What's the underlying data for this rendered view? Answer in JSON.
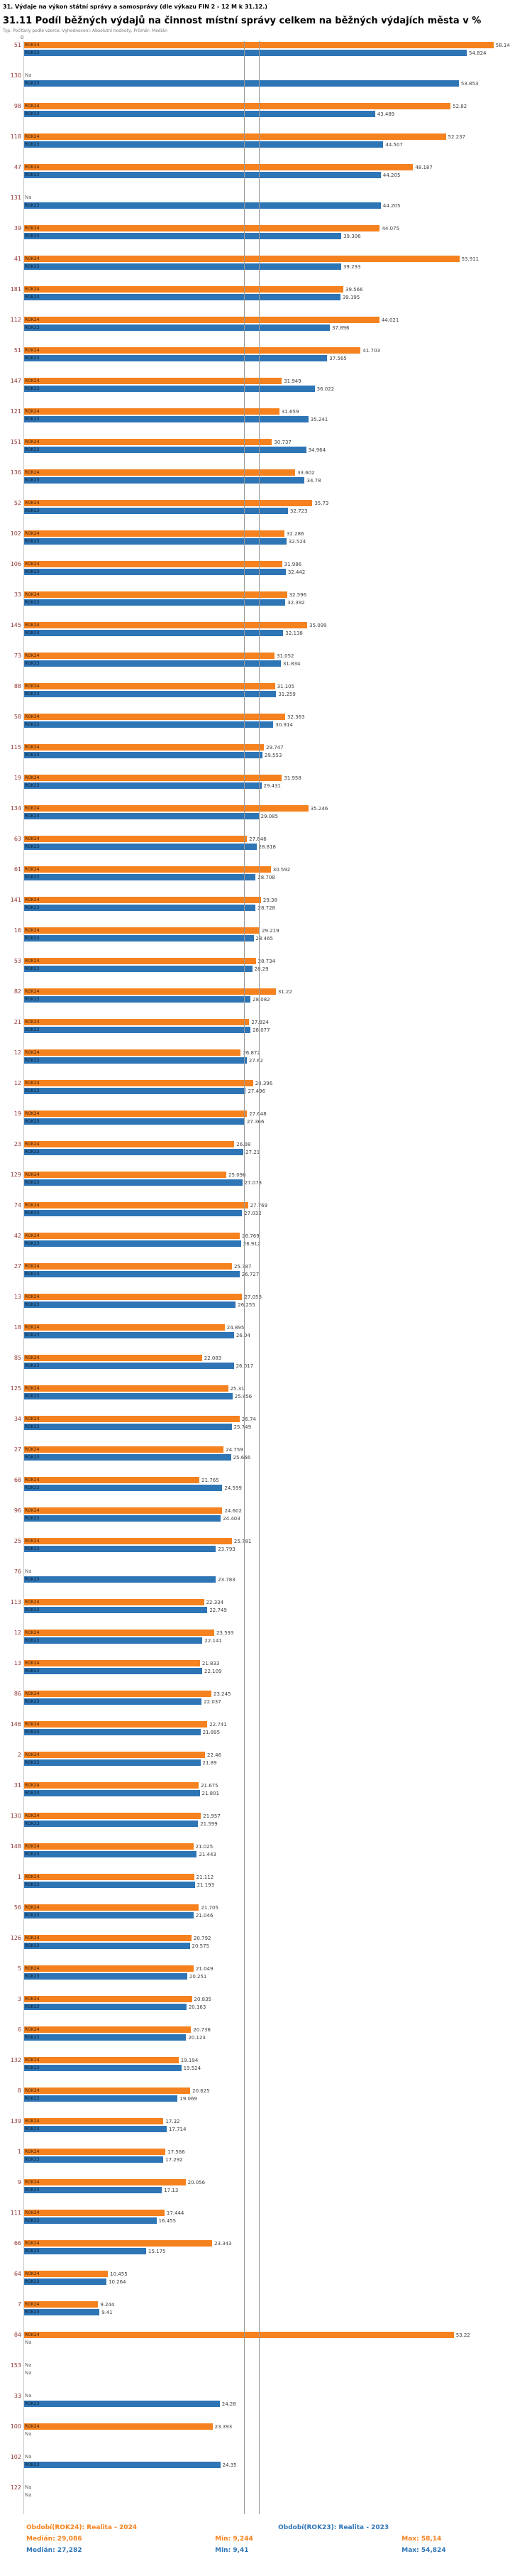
{
  "header": {
    "title": "31. Výdaje na výkon státní správy a samosprávy (dle výkazu FIN 2 - 12 M k 31.12.)",
    "subtitle": "31.11 Podíl běžných výdajů na činnost místní správy celkem na běžných výdajích města v %",
    "meta": "Typ: Počítaný podle vzorce, Vyhodnocení: Absolutní hodnoty, Průměr: Medián"
  },
  "axis": {
    "origin_label": "0"
  },
  "footer": {
    "legend": [
      {
        "label": "Období(ROK24): Realita - 2024",
        "color": "#F5821F"
      },
      {
        "label": "Období(ROK23): Realita - 2023",
        "color": "#2E75B6"
      }
    ],
    "stats": [
      {
        "median": "Medián: 29,086",
        "min": "Min: 9,244",
        "max": "Max: 58,14",
        "color": "#F5821F"
      },
      {
        "median": "Medián: 27,282",
        "min": "Min: 9,41",
        "max": "Max: 54,824",
        "color": "#2E75B6"
      }
    ]
  },
  "chart_data": {
    "type": "bar",
    "orientation": "horizontal",
    "title": "31.11 Podíl běžných výdajů na činnost místní správy celkem na běžných výdajích města v %",
    "xlabel": "",
    "ylabel": "",
    "x_axis": {
      "min": 0,
      "max": 62,
      "origin_label": "0"
    },
    "legend_position": "bottom",
    "grid": false,
    "series_labels": [
      "ROK24",
      "ROK23"
    ],
    "colors": {
      "ROK24": "#F5821F",
      "ROK23": "#2E75B6"
    },
    "na_label": "Na",
    "medians": {
      "ROK24": 29.086,
      "ROK23": 27.282
    },
    "mins": {
      "ROK24": 9.244,
      "ROK23": 9.41
    },
    "maxs": {
      "ROK24": 58.14,
      "ROK23": 54.824
    },
    "rows": [
      {
        "id": "51",
        "ROK24": 58.14,
        "ROK23": 54.824
      },
      {
        "id": "130",
        "ROK24": null,
        "ROK23": 53.853
      },
      {
        "id": "98",
        "ROK24": 52.82,
        "ROK23": 43.489
      },
      {
        "id": "118",
        "ROK24": 52.237,
        "ROK23": 44.507
      },
      {
        "id": "47",
        "ROK24": 48.187,
        "ROK23": 44.205
      },
      {
        "id": "131",
        "ROK24": null,
        "ROK23": 44.205
      },
      {
        "id": "39",
        "ROK24": 44.075,
        "ROK23": 39.306
      },
      {
        "id": "41",
        "ROK24": 53.911,
        "ROK23": 39.293
      },
      {
        "id": "181",
        "ROK24": 39.566,
        "ROK23": 39.195
      },
      {
        "id": "112",
        "ROK24": 44.021,
        "ROK23": 37.896
      },
      {
        "id": "51",
        "ROK24": 41.703,
        "ROK23": 37.565
      },
      {
        "id": "147",
        "ROK24": 31.949,
        "ROK23": 36.022
      },
      {
        "id": "121",
        "ROK24": 31.659,
        "ROK23": 35.241
      },
      {
        "id": "151",
        "ROK24": 30.737,
        "ROK23": 34.964
      },
      {
        "id": "136",
        "ROK24": 33.602,
        "ROK23": 34.78
      },
      {
        "id": "52",
        "ROK24": 35.73,
        "ROK23": 32.723
      },
      {
        "id": "102",
        "ROK24": 32.286,
        "ROK23": 32.524
      },
      {
        "id": "106",
        "ROK24": 31.986,
        "ROK23": 32.442
      },
      {
        "id": "33",
        "ROK24": 32.596,
        "ROK23": 32.392
      },
      {
        "id": "145",
        "ROK24": 35.099,
        "ROK23": 32.138
      },
      {
        "id": "73",
        "ROK24": 31.052,
        "ROK23": 31.834
      },
      {
        "id": "88",
        "ROK24": 31.105,
        "ROK23": 31.259
      },
      {
        "id": "58",
        "ROK24": 32.363,
        "ROK23": 30.914
      },
      {
        "id": "115",
        "ROK24": 29.747,
        "ROK23": 29.553
      },
      {
        "id": "19",
        "ROK24": 31.958,
        "ROK23": 29.431
      },
      {
        "id": "134",
        "ROK24": 35.246,
        "ROK23": 29.085
      },
      {
        "id": "63",
        "ROK24": 27.646,
        "ROK23": 28.818
      },
      {
        "id": "61",
        "ROK24": 30.592,
        "ROK23": 28.708
      },
      {
        "id": "141",
        "ROK24": 29.38,
        "ROK23": 28.728
      },
      {
        "id": "16",
        "ROK24": 29.219,
        "ROK23": 28.465
      },
      {
        "id": "53",
        "ROK24": 28.734,
        "ROK23": 28.29
      },
      {
        "id": "82",
        "ROK24": 31.22,
        "ROK23": 28.082
      },
      {
        "id": "21",
        "ROK24": 27.924,
        "ROK23": 28.077
      },
      {
        "id": "12",
        "ROK24": 26.872,
        "ROK23": 27.62
      },
      {
        "id": "12",
        "ROK24": 28.396,
        "ROK23": 27.496
      },
      {
        "id": "19",
        "ROK24": 27.648,
        "ROK23": 27.366
      },
      {
        "id": "23",
        "ROK24": 26.08,
        "ROK23": 27.21
      },
      {
        "id": "129",
        "ROK24": 25.096,
        "ROK23": 27.073
      },
      {
        "id": "74",
        "ROK24": 27.769,
        "ROK23": 27.032
      },
      {
        "id": "42",
        "ROK24": 26.769,
        "ROK23": 26.912
      },
      {
        "id": "27",
        "ROK24": 25.787,
        "ROK23": 26.727
      },
      {
        "id": "13",
        "ROK24": 27.058,
        "ROK23": 26.255
      },
      {
        "id": "18",
        "ROK24": 24.895,
        "ROK23": 26.04
      },
      {
        "id": "85",
        "ROK24": 22.083,
        "ROK23": 26.017
      },
      {
        "id": "125",
        "ROK24": 25.31,
        "ROK23": 25.856
      },
      {
        "id": "34",
        "ROK24": 26.74,
        "ROK23": 25.749
      },
      {
        "id": "27",
        "ROK24": 24.759,
        "ROK23": 25.666
      },
      {
        "id": "68",
        "ROK24": 21.765,
        "ROK23": 24.599
      },
      {
        "id": "96",
        "ROK24": 24.602,
        "ROK23": 24.403
      },
      {
        "id": "25",
        "ROK24": 25.781,
        "ROK23": 23.793
      },
      {
        "id": "76",
        "ROK24": null,
        "ROK23": 23.783
      },
      {
        "id": "113",
        "ROK24": 22.334,
        "ROK23": 22.749
      },
      {
        "id": "12",
        "ROK24": 23.593,
        "ROK23": 22.141
      },
      {
        "id": "13",
        "ROK24": 21.833,
        "ROK23": 22.109
      },
      {
        "id": "86",
        "ROK24": 23.245,
        "ROK23": 22.037
      },
      {
        "id": "146",
        "ROK24": 22.741,
        "ROK23": 21.895
      },
      {
        "id": "2",
        "ROK24": 22.46,
        "ROK23": 21.89
      },
      {
        "id": "31",
        "ROK24": 21.675,
        "ROK23": 21.801
      },
      {
        "id": "130",
        "ROK24": 21.957,
        "ROK23": 21.599
      },
      {
        "id": "148",
        "ROK24": 21.025,
        "ROK23": 21.443
      },
      {
        "id": "1",
        "ROK24": 21.112,
        "ROK23": 21.193
      },
      {
        "id": "56",
        "ROK24": 21.705,
        "ROK23": 21.046
      },
      {
        "id": "126",
        "ROK24": 20.792,
        "ROK23": 20.575
      },
      {
        "id": "5",
        "ROK24": 21.049,
        "ROK23": 20.251
      },
      {
        "id": "3",
        "ROK24": 20.835,
        "ROK23": 20.163
      },
      {
        "id": "6",
        "ROK24": 20.738,
        "ROK23": 20.123
      },
      {
        "id": "132",
        "ROK24": 19.194,
        "ROK23": 19.524
      },
      {
        "id": "8",
        "ROK24": 20.625,
        "ROK23": 19.069
      },
      {
        "id": "139",
        "ROK24": 17.32,
        "ROK23": 17.714
      },
      {
        "id": "1",
        "ROK24": 17.566,
        "ROK23": 17.292
      },
      {
        "id": "9",
        "ROK24": 20.056,
        "ROK23": 17.13
      },
      {
        "id": "111",
        "ROK24": 17.444,
        "ROK23": 16.455
      },
      {
        "id": "66",
        "ROK24": 23.343,
        "ROK23": 15.175
      },
      {
        "id": "64",
        "ROK24": 10.455,
        "ROK23": 10.264
      },
      {
        "id": "7",
        "ROK24": 9.244,
        "ROK23": 9.41
      },
      {
        "id": "84",
        "ROK24": 53.22,
        "ROK23": null
      },
      {
        "id": "153",
        "ROK24": null,
        "ROK23": null
      },
      {
        "id": "33",
        "ROK24": null,
        "ROK23": 24.28
      },
      {
        "id": "100",
        "ROK24": 23.393,
        "ROK23": null
      },
      {
        "id": "102",
        "ROK24": null,
        "ROK23": 24.35
      },
      {
        "id": "122",
        "ROK24": null,
        "ROK23": null
      }
    ]
  }
}
